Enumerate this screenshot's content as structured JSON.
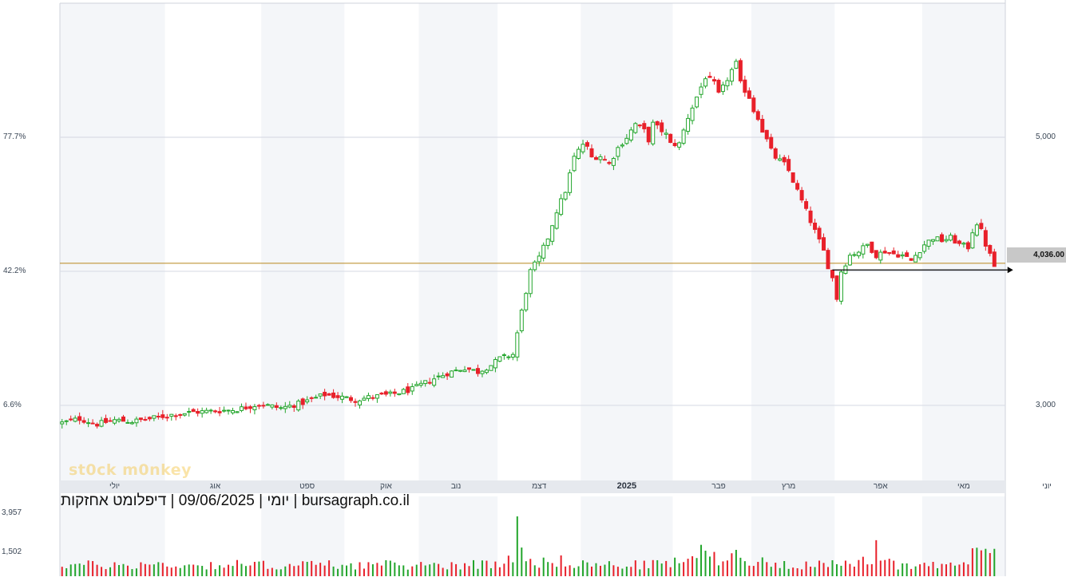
{
  "chart_data": {
    "type": "candlestick",
    "caption": "09/06/2025 | דיפלומט אחזקות | bursagraph.co.il",
    "caption_suffix": "יומי |",
    "watermark": "st0ck m0nkey",
    "last_price_label": "4,036.00",
    "last_price": 4036,
    "support_line": 4010,
    "horizontal_line_price": 4060,
    "ylim": [
      2440,
      6000
    ],
    "price_ticks": [
      {
        "value": 5000,
        "label": "5,000"
      },
      {
        "value": 3000,
        "label": "3,000"
      }
    ],
    "pct_ticks": [
      {
        "value": 5000,
        "label": "77.7%"
      },
      {
        "value": 4000,
        "label": "42.2%"
      },
      {
        "value": 3000,
        "label": "6.6%"
      }
    ],
    "months": [
      {
        "label": "יולי",
        "x_index": 12,
        "bold": false
      },
      {
        "label": "אוג",
        "x_index": 35,
        "bold": false
      },
      {
        "label": "ספט",
        "x_index": 56,
        "bold": false
      },
      {
        "label": "אוק",
        "x_index": 74,
        "bold": false
      },
      {
        "label": "נוב",
        "x_index": 90,
        "bold": false
      },
      {
        "label": "דצמ",
        "x_index": 109,
        "bold": false
      },
      {
        "label": "2025",
        "x_index": 129,
        "bold": true
      },
      {
        "label": "פבר",
        "x_index": 150,
        "bold": false
      },
      {
        "label": "מרץ",
        "x_index": 166,
        "bold": false
      },
      {
        "label": "אפר",
        "x_index": 187,
        "bold": false
      },
      {
        "label": "מאי",
        "x_index": 206,
        "bold": false
      },
      {
        "label": "יוני",
        "x_index": 225,
        "bold": false
      }
    ],
    "volume_ticks": [
      {
        "value": 3957,
        "label": "3,957"
      },
      {
        "value": 1502,
        "label": "1,502"
      }
    ],
    "volume_max": 5000,
    "colors": {
      "up": "#22a52b",
      "down": "#e8202a",
      "band": "#f4f6f9",
      "grid": "#d9dde6",
      "hline": "#b8861b"
    },
    "close_points": [
      [
        0,
        2870
      ],
      [
        4,
        2900
      ],
      [
        8,
        2860
      ],
      [
        12,
        2890
      ],
      [
        16,
        2880
      ],
      [
        20,
        2900
      ],
      [
        25,
        2930
      ],
      [
        30,
        2950
      ],
      [
        36,
        2960
      ],
      [
        40,
        2970
      ],
      [
        45,
        3010
      ],
      [
        50,
        2980
      ],
      [
        55,
        3020
      ],
      [
        60,
        3080
      ],
      [
        64,
        3060
      ],
      [
        67,
        3040
      ],
      [
        70,
        3060
      ],
      [
        75,
        3080
      ],
      [
        80,
        3120
      ],
      [
        85,
        3200
      ],
      [
        88,
        3240
      ],
      [
        92,
        3280
      ],
      [
        95,
        3250
      ],
      [
        98,
        3300
      ],
      [
        100,
        3350
      ],
      [
        103,
        3380
      ],
      [
        105,
        3700
      ],
      [
        107,
        4000
      ],
      [
        109,
        4100
      ],
      [
        111,
        4250
      ],
      [
        113,
        4450
      ],
      [
        115,
        4600
      ],
      [
        117,
        4850
      ],
      [
        119,
        4950
      ],
      [
        120,
        4920
      ],
      [
        121,
        4850
      ],
      [
        123,
        4860
      ],
      [
        125,
        4800
      ],
      [
        127,
        4920
      ],
      [
        129,
        5000
      ],
      [
        131,
        5100
      ],
      [
        133,
        5050
      ],
      [
        134,
        4980
      ],
      [
        135,
        5100
      ],
      [
        137,
        5050
      ],
      [
        138,
        5020
      ],
      [
        139,
        4950
      ],
      [
        141,
        4950
      ],
      [
        143,
        5150
      ],
      [
        145,
        5300
      ],
      [
        147,
        5450
      ],
      [
        149,
        5400
      ],
      [
        150,
        5320
      ],
      [
        151,
        5370
      ],
      [
        153,
        5500
      ],
      [
        154,
        5550
      ],
      [
        155,
        5400
      ],
      [
        157,
        5300
      ],
      [
        158,
        5200
      ],
      [
        159,
        5150
      ],
      [
        160,
        5050
      ],
      [
        161,
        4980
      ],
      [
        162,
        4900
      ],
      [
        163,
        4850
      ],
      [
        165,
        4800
      ],
      [
        166,
        4750
      ],
      [
        168,
        4600
      ],
      [
        170,
        4450
      ],
      [
        172,
        4300
      ],
      [
        174,
        4150
      ],
      [
        175,
        4040
      ],
      [
        176,
        3950
      ],
      [
        177,
        3800
      ],
      [
        178,
        4000
      ],
      [
        180,
        4120
      ],
      [
        182,
        4150
      ],
      [
        184,
        4200
      ],
      [
        186,
        4120
      ],
      [
        188,
        4150
      ],
      [
        190,
        4130
      ],
      [
        192,
        4120
      ],
      [
        194,
        4080
      ],
      [
        195,
        4120
      ],
      [
        197,
        4200
      ],
      [
        199,
        4250
      ],
      [
        201,
        4230
      ],
      [
        203,
        4250
      ],
      [
        205,
        4200
      ],
      [
        207,
        4180
      ],
      [
        208,
        4300
      ],
      [
        209,
        4360
      ],
      [
        210,
        4300
      ],
      [
        211,
        4200
      ],
      [
        212,
        4120
      ],
      [
        213,
        4036
      ]
    ],
    "volume_points": [
      [
        0,
        700
      ],
      [
        10,
        650
      ],
      [
        20,
        700
      ],
      [
        30,
        650
      ],
      [
        40,
        700
      ],
      [
        50,
        650
      ],
      [
        60,
        700
      ],
      [
        70,
        680
      ],
      [
        80,
        650
      ],
      [
        90,
        700
      ],
      [
        100,
        720
      ],
      [
        103,
        1300
      ],
      [
        104,
        4200
      ],
      [
        106,
        1200
      ],
      [
        109,
        800
      ],
      [
        115,
        900
      ],
      [
        120,
        700
      ],
      [
        130,
        650
      ],
      [
        140,
        800
      ],
      [
        145,
        1400
      ],
      [
        150,
        1100
      ],
      [
        155,
        1300
      ],
      [
        160,
        800
      ],
      [
        170,
        700
      ],
      [
        180,
        650
      ],
      [
        185,
        1000
      ],
      [
        186,
        3000
      ],
      [
        187,
        1200
      ],
      [
        190,
        700
      ],
      [
        200,
        650
      ],
      [
        205,
        1000
      ],
      [
        209,
        1300
      ],
      [
        213,
        1200
      ]
    ]
  }
}
